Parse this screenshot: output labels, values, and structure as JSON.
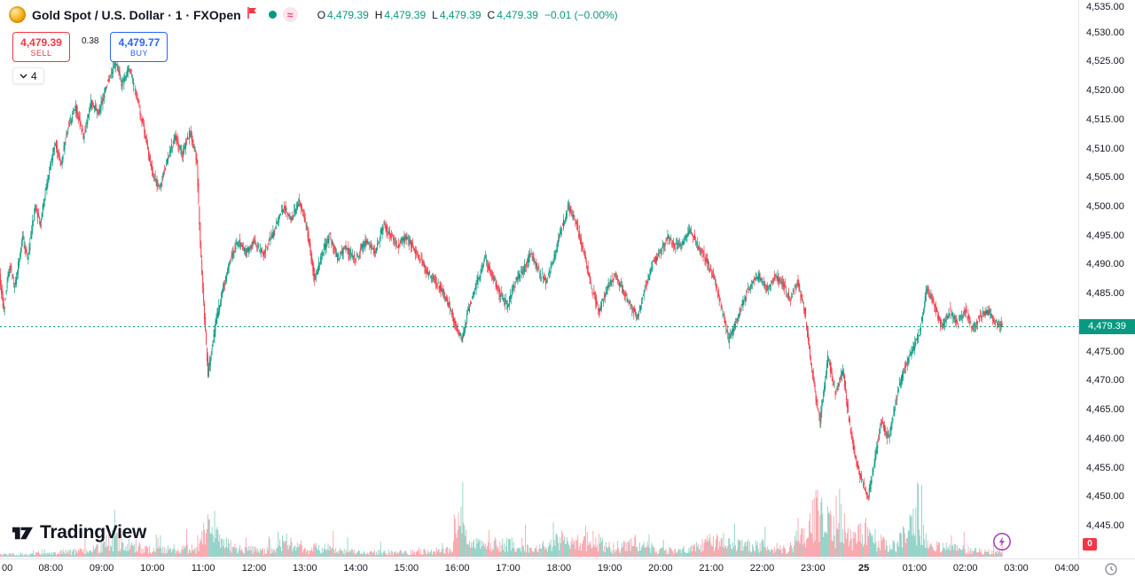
{
  "header": {
    "title": "Gold Spot / U.S. Dollar · 1 · FXOpen",
    "approx_symbol": "≈",
    "ohlc": {
      "o_label": "O",
      "o": "4,479.39",
      "h_label": "H",
      "h": "4,479.39",
      "l_label": "L",
      "l": "4,479.39",
      "c_label": "C",
      "c": "4,479.39",
      "change": "−0.01 (−0.00%)"
    }
  },
  "trade_panel": {
    "sell_price": "4,479.39",
    "sell_label": "SELL",
    "spread": "0.38",
    "buy_price": "4,479.77",
    "buy_label": "BUY",
    "indicators_count": "4"
  },
  "watermark": {
    "text": "TradingView"
  },
  "price_axis": {
    "labels": [
      "4,535.00",
      "4,530.00",
      "4,525.00",
      "4,520.00",
      "4,515.00",
      "4,510.00",
      "4,505.00",
      "4,500.00",
      "4,495.00",
      "4,490.00",
      "4,485.00",
      "4,475.00",
      "4,470.00",
      "4,465.00",
      "4,460.00",
      "4,455.00",
      "4,450.00",
      "4,445.00"
    ],
    "last_price_label": "4,479.39",
    "badge": "0"
  },
  "time_axis": {
    "labels": [
      {
        "label": "00"
      },
      {
        "label": "08:00"
      },
      {
        "label": "09:00"
      },
      {
        "label": "10:00"
      },
      {
        "label": "11:00"
      },
      {
        "label": "12:00"
      },
      {
        "label": "13:00"
      },
      {
        "label": "14:00"
      },
      {
        "label": "15:00"
      },
      {
        "label": "16:00"
      },
      {
        "label": "17:00"
      },
      {
        "label": "18:00"
      },
      {
        "label": "19:00"
      },
      {
        "label": "20:00"
      },
      {
        "label": "21:00"
      },
      {
        "label": "22:00"
      },
      {
        "label": "23:00"
      },
      {
        "label": "25",
        "bold": true
      },
      {
        "label": "01:00"
      },
      {
        "label": "02:00"
      },
      {
        "label": "03:00"
      },
      {
        "label": "04:00"
      }
    ]
  },
  "colors": {
    "up": "#089981",
    "down": "#f23645",
    "volume_up": "rgba(8,153,129,0.45)",
    "volume_down": "rgba(242,54,69,0.45)",
    "buy_blue": "#2962ff",
    "sell_red": "#f23645",
    "axis_text": "#131722",
    "grid_border": "#e0e3eb",
    "accent_purple": "#ab47bc",
    "tag_green": "#089981"
  },
  "chart_data": {
    "type": "candlestick",
    "title": "Gold Spot / U.S. Dollar",
    "interval_minutes": 1,
    "exchange": "FXOpen",
    "open": 4479.39,
    "high": 4479.39,
    "low": 4479.39,
    "close": 4479.39,
    "last_price": 4479.39,
    "change": -0.01,
    "change_pct": "-0.00%",
    "sell": 4479.39,
    "buy": 4479.77,
    "spread": 0.38,
    "y_axis": {
      "visible_min": 4443.5,
      "visible_max": 4535.6,
      "tick_step": 5,
      "first_tick": 4445,
      "last_tick": 4535
    },
    "x_axis": {
      "start_hour": 7.0,
      "end_hour": 28.2,
      "last_candle_hour": 26.72,
      "day_boundary_hour": 24,
      "day_boundary_label": "25"
    },
    "price_path_hours_price": [
      [
        7.0,
        4488
      ],
      [
        7.08,
        4482
      ],
      [
        7.2,
        4490
      ],
      [
        7.3,
        4486
      ],
      [
        7.45,
        4495
      ],
      [
        7.55,
        4491
      ],
      [
        7.7,
        4500
      ],
      [
        7.8,
        4497
      ],
      [
        7.95,
        4505
      ],
      [
        8.1,
        4511
      ],
      [
        8.2,
        4507
      ],
      [
        8.35,
        4514
      ],
      [
        8.5,
        4517
      ],
      [
        8.65,
        4512
      ],
      [
        8.8,
        4518
      ],
      [
        8.95,
        4516
      ],
      [
        9.1,
        4521
      ],
      [
        9.3,
        4525
      ],
      [
        9.4,
        4521
      ],
      [
        9.55,
        4524
      ],
      [
        9.7,
        4519
      ],
      [
        9.85,
        4513
      ],
      [
        10.0,
        4506
      ],
      [
        10.15,
        4503
      ],
      [
        10.3,
        4508
      ],
      [
        10.45,
        4512
      ],
      [
        10.6,
        4509
      ],
      [
        10.75,
        4513
      ],
      [
        10.88,
        4508
      ],
      [
        10.97,
        4490
      ],
      [
        11.1,
        4471
      ],
      [
        11.25,
        4480
      ],
      [
        11.4,
        4486
      ],
      [
        11.55,
        4491
      ],
      [
        11.7,
        4494
      ],
      [
        11.85,
        4492
      ],
      [
        12.0,
        4494
      ],
      [
        12.2,
        4492
      ],
      [
        12.4,
        4496
      ],
      [
        12.6,
        4500
      ],
      [
        12.75,
        4498
      ],
      [
        12.9,
        4501
      ],
      [
        13.05,
        4496
      ],
      [
        13.2,
        4487
      ],
      [
        13.35,
        4492
      ],
      [
        13.5,
        4495
      ],
      [
        13.65,
        4491
      ],
      [
        13.8,
        4493
      ],
      [
        14.0,
        4491
      ],
      [
        14.2,
        4494
      ],
      [
        14.4,
        4492
      ],
      [
        14.55,
        4497
      ],
      [
        14.7,
        4495
      ],
      [
        14.85,
        4493
      ],
      [
        15.0,
        4495
      ],
      [
        15.2,
        4492
      ],
      [
        15.4,
        4489
      ],
      [
        15.6,
        4487
      ],
      [
        15.8,
        4484
      ],
      [
        16.0,
        4479
      ],
      [
        16.1,
        4477
      ],
      [
        16.25,
        4483
      ],
      [
        16.4,
        4487
      ],
      [
        16.55,
        4491
      ],
      [
        16.7,
        4488
      ],
      [
        16.85,
        4485
      ],
      [
        17.0,
        4483
      ],
      [
        17.15,
        4487
      ],
      [
        17.3,
        4489
      ],
      [
        17.45,
        4492
      ],
      [
        17.6,
        4489
      ],
      [
        17.75,
        4487
      ],
      [
        17.9,
        4491
      ],
      [
        18.05,
        4496
      ],
      [
        18.2,
        4500
      ],
      [
        18.35,
        4497
      ],
      [
        18.5,
        4492
      ],
      [
        18.65,
        4486
      ],
      [
        18.8,
        4482
      ],
      [
        18.95,
        4486
      ],
      [
        19.1,
        4488
      ],
      [
        19.25,
        4486
      ],
      [
        19.4,
        4483
      ],
      [
        19.55,
        4481
      ],
      [
        19.7,
        4486
      ],
      [
        19.85,
        4490
      ],
      [
        20.0,
        4492
      ],
      [
        20.15,
        4495
      ],
      [
        20.3,
        4493
      ],
      [
        20.45,
        4494
      ],
      [
        20.6,
        4496
      ],
      [
        20.75,
        4493
      ],
      [
        20.9,
        4491
      ],
      [
        21.05,
        4488
      ],
      [
        21.2,
        4483
      ],
      [
        21.35,
        4477
      ],
      [
        21.5,
        4480
      ],
      [
        21.65,
        4484
      ],
      [
        21.8,
        4487
      ],
      [
        21.95,
        4488
      ],
      [
        22.1,
        4486
      ],
      [
        22.25,
        4488
      ],
      [
        22.4,
        4487
      ],
      [
        22.55,
        4484
      ],
      [
        22.7,
        4487
      ],
      [
        22.85,
        4482
      ],
      [
        22.95,
        4474
      ],
      [
        23.05,
        4468
      ],
      [
        23.15,
        4463
      ],
      [
        23.3,
        4474
      ],
      [
        23.45,
        4468
      ],
      [
        23.6,
        4472
      ],
      [
        23.7,
        4464
      ],
      [
        23.85,
        4456
      ],
      [
        24.0,
        4452
      ],
      [
        24.1,
        4450
      ],
      [
        24.2,
        4455
      ],
      [
        24.35,
        4463
      ],
      [
        24.5,
        4460
      ],
      [
        24.65,
        4467
      ],
      [
        24.8,
        4472
      ],
      [
        24.95,
        4475
      ],
      [
        25.1,
        4478
      ],
      [
        25.25,
        4486
      ],
      [
        25.4,
        4483
      ],
      [
        25.55,
        4479
      ],
      [
        25.7,
        4482
      ],
      [
        25.85,
        4480
      ],
      [
        26.0,
        4482
      ],
      [
        26.15,
        4479
      ],
      [
        26.3,
        4481
      ],
      [
        26.45,
        4482
      ],
      [
        26.6,
        4480
      ],
      [
        26.72,
        4479.39
      ]
    ],
    "volume_profile_hours_rel": [
      [
        7.0,
        0.04
      ],
      [
        8.0,
        0.06
      ],
      [
        8.8,
        0.12
      ],
      [
        9.2,
        0.3
      ],
      [
        9.6,
        0.2
      ],
      [
        10.0,
        0.12
      ],
      [
        10.9,
        0.15
      ],
      [
        11.05,
        0.5
      ],
      [
        11.3,
        0.35
      ],
      [
        11.6,
        0.15
      ],
      [
        12.4,
        0.1
      ],
      [
        12.5,
        0.3
      ],
      [
        13.0,
        0.12
      ],
      [
        13.3,
        0.18
      ],
      [
        14.0,
        0.08
      ],
      [
        15.0,
        0.08
      ],
      [
        15.9,
        0.12
      ],
      [
        16.05,
        0.95
      ],
      [
        16.2,
        0.2
      ],
      [
        17.0,
        0.25
      ],
      [
        17.5,
        0.12
      ],
      [
        18.05,
        0.3
      ],
      [
        18.3,
        0.25
      ],
      [
        18.7,
        0.3
      ],
      [
        19.0,
        0.15
      ],
      [
        19.5,
        0.25
      ],
      [
        20.0,
        0.12
      ],
      [
        20.5,
        0.1
      ],
      [
        21.0,
        0.3
      ],
      [
        21.4,
        0.2
      ],
      [
        22.0,
        0.22
      ],
      [
        22.5,
        0.12
      ],
      [
        22.9,
        0.5
      ],
      [
        23.05,
        0.8
      ],
      [
        23.2,
        0.65
      ],
      [
        23.5,
        0.4
      ],
      [
        23.8,
        0.3
      ],
      [
        24.0,
        0.5
      ],
      [
        24.2,
        0.3
      ],
      [
        24.6,
        0.2
      ],
      [
        25.0,
        0.6
      ],
      [
        25.3,
        0.2
      ],
      [
        25.8,
        0.15
      ],
      [
        26.2,
        0.1
      ],
      [
        26.6,
        0.08
      ]
    ]
  }
}
